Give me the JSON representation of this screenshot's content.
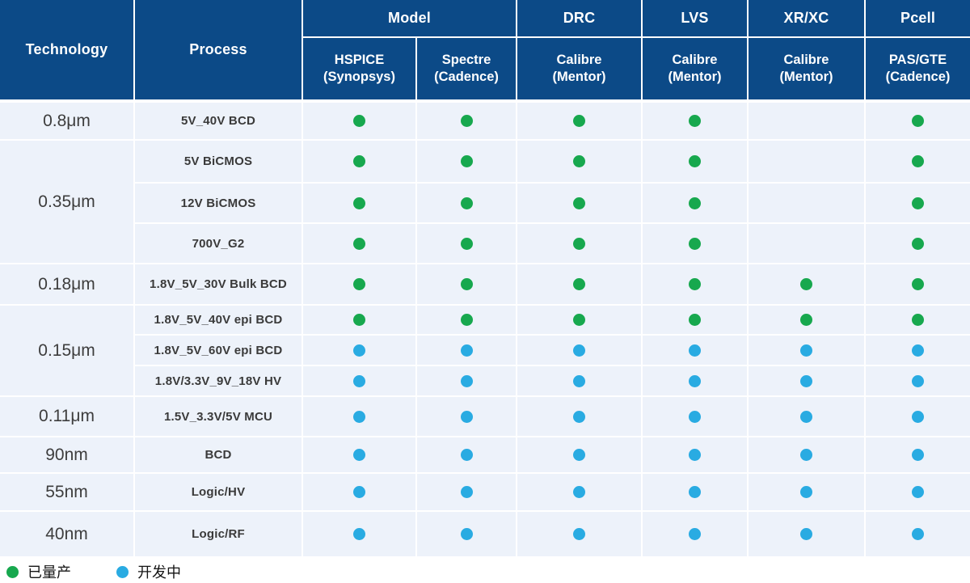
{
  "chart_data": {
    "type": "table",
    "header": {
      "row1": [
        "Technology",
        "Process",
        "Model",
        "DRC",
        "LVS",
        "XR/XC",
        "Pcell"
      ],
      "row2": [
        "HSPICE\n(Synopsys)",
        "Spectre\n(Cadence)",
        "Calibre\n(Mentor)",
        "Calibre\n(Mentor)",
        "Calibre\n(Mentor)",
        "PAS/GTE\n(Cadence)"
      ]
    },
    "status_columns": [
      "HSPICE (Synopsys)",
      "Spectre (Cadence)",
      "Calibre (Mentor) DRC",
      "Calibre (Mentor) LVS",
      "Calibre (Mentor) XR/XC",
      "PAS/GTE (Cadence) Pcell"
    ],
    "rows": [
      {
        "technology": "0.8μm",
        "tech_rowspan": 1,
        "process": "5V_40V BCD",
        "status": [
          "mass",
          "mass",
          "mass",
          "mass",
          null,
          "mass"
        ]
      },
      {
        "technology": "0.35μm",
        "tech_rowspan": 3,
        "process": "5V BiCMOS",
        "status": [
          "mass",
          "mass",
          "mass",
          "mass",
          null,
          "mass"
        ]
      },
      {
        "process": "12V BiCMOS",
        "status": [
          "mass",
          "mass",
          "mass",
          "mass",
          null,
          "mass"
        ]
      },
      {
        "process": "700V_G2",
        "status": [
          "mass",
          "mass",
          "mass",
          "mass",
          null,
          "mass"
        ]
      },
      {
        "technology": "0.18μm",
        "tech_rowspan": 1,
        "process": "1.8V_5V_30V Bulk BCD",
        "status": [
          "mass",
          "mass",
          "mass",
          "mass",
          "mass",
          "mass"
        ]
      },
      {
        "technology": "0.15μm",
        "tech_rowspan": 3,
        "process": "1.8V_5V_40V epi  BCD",
        "status": [
          "mass",
          "mass",
          "mass",
          "mass",
          "mass",
          "mass"
        ]
      },
      {
        "process": "1.8V_5V_60V epi BCD",
        "status": [
          "dev",
          "dev",
          "dev",
          "dev",
          "dev",
          "dev"
        ]
      },
      {
        "process": "1.8V/3.3V_9V_18V HV",
        "status": [
          "dev",
          "dev",
          "dev",
          "dev",
          "dev",
          "dev"
        ]
      },
      {
        "technology": "0.11μm",
        "tech_rowspan": 1,
        "process": "1.5V_3.3V/5V MCU",
        "status": [
          "dev",
          "dev",
          "dev",
          "dev",
          "dev",
          "dev"
        ]
      },
      {
        "technology": "90nm",
        "tech_rowspan": 1,
        "process": "BCD",
        "status": [
          "dev",
          "dev",
          "dev",
          "dev",
          "dev",
          "dev"
        ]
      },
      {
        "technology": "55nm",
        "tech_rowspan": 1,
        "process": "Logic/HV",
        "status": [
          "dev",
          "dev",
          "dev",
          "dev",
          "dev",
          "dev"
        ]
      },
      {
        "technology": "40nm",
        "tech_rowspan": 1,
        "process": "Logic/RF",
        "status": [
          "dev",
          "dev",
          "dev",
          "dev",
          "dev",
          "dev"
        ]
      }
    ],
    "legend": [
      {
        "label": "已量产",
        "status": "mass"
      },
      {
        "label": "开发中",
        "status": "dev"
      }
    ],
    "colors": {
      "header_bg": "#0C4A87",
      "body_bg": "#EDF2FA",
      "mass": "#17A84E",
      "dev": "#29ABE2"
    }
  }
}
